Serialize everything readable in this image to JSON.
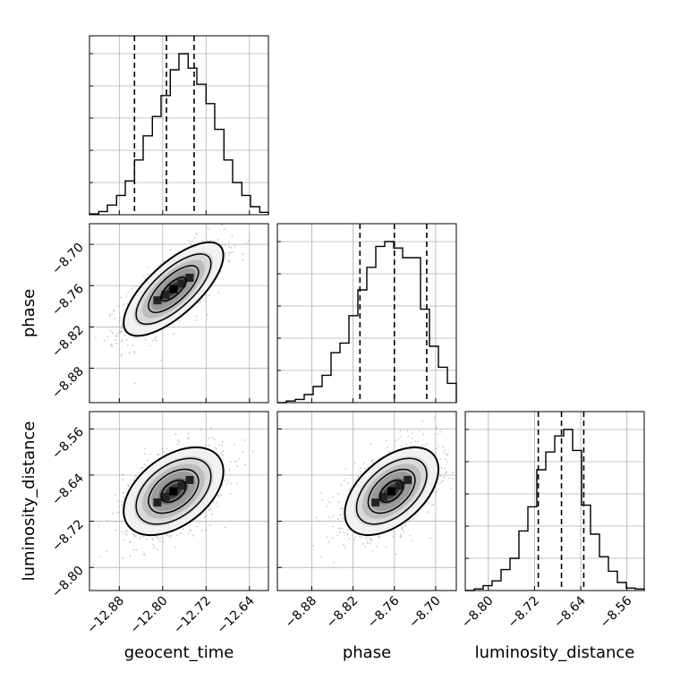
{
  "chart_data": {
    "type": "corner",
    "parameters": [
      "geocent_time",
      "phase",
      "luminosity_distance"
    ],
    "grid": true,
    "marginals": [
      {
        "parameter": "geocent_time",
        "xlim": [
          -12.935,
          -12.605
        ],
        "ticks": [
          -12.88,
          -12.8,
          -12.72,
          -12.64
        ],
        "tick_labels": [
          "−12.88",
          "−12.80",
          "−12.72",
          "−12.64"
        ],
        "quantiles": [
          -12.852,
          -12.793,
          -12.742
        ],
        "bins": [
          -12.935,
          -12.918,
          -12.902,
          -12.885,
          -12.869,
          -12.852,
          -12.836,
          -12.819,
          -12.803,
          -12.786,
          -12.77,
          -12.753,
          -12.737,
          -12.72,
          -12.704,
          -12.687,
          -12.671,
          -12.654,
          -12.638,
          -12.621,
          -12.605
        ],
        "density": [
          0.005,
          0.02,
          0.06,
          0.12,
          0.21,
          0.34,
          0.49,
          0.61,
          0.74,
          0.9,
          1.0,
          0.91,
          0.81,
          0.69,
          0.53,
          0.34,
          0.2,
          0.12,
          0.05,
          0.015
        ]
      },
      {
        "parameter": "phase",
        "xlim": [
          -8.93,
          -8.67
        ],
        "ticks": [
          -8.88,
          -8.82,
          -8.76,
          -8.7
        ],
        "tick_labels": [
          "−8.88",
          "−8.82",
          "−8.76",
          "−8.70"
        ],
        "quantiles": [
          -8.81,
          -8.76,
          -8.713
        ],
        "bins": [
          -8.93,
          -8.917,
          -8.904,
          -8.891,
          -8.878,
          -8.865,
          -8.852,
          -8.839,
          -8.826,
          -8.813,
          -8.8,
          -8.787,
          -8.774,
          -8.761,
          -8.748,
          -8.735,
          -8.722,
          -8.709,
          -8.696,
          -8.683,
          -8.67
        ],
        "density": [
          0.0,
          0.01,
          0.02,
          0.05,
          0.1,
          0.17,
          0.31,
          0.37,
          0.54,
          0.7,
          0.84,
          0.97,
          1.0,
          0.96,
          0.9,
          0.9,
          0.58,
          0.35,
          0.22,
          0.12
        ]
      },
      {
        "parameter": "luminosity_distance",
        "xlim": [
          -8.84,
          -8.53
        ],
        "ticks": [
          -8.8,
          -8.72,
          -8.64,
          -8.56
        ],
        "tick_labels": [
          "−8.80",
          "−8.72",
          "−8.64",
          "−8.56"
        ],
        "quantiles": [
          -8.7135,
          -8.6733,
          -8.6347
        ],
        "bins": [
          -8.84,
          -8.8245,
          -8.809,
          -8.7935,
          -8.778,
          -8.7625,
          -8.747,
          -8.7315,
          -8.716,
          -8.7005,
          -8.685,
          -8.6695,
          -8.654,
          -8.6385,
          -8.623,
          -8.6075,
          -8.592,
          -8.5765,
          -8.561,
          -8.5455,
          -8.53
        ],
        "density": [
          0.0,
          0.01,
          0.03,
          0.06,
          0.13,
          0.2,
          0.37,
          0.52,
          0.75,
          0.86,
          0.96,
          1.0,
          0.87,
          0.53,
          0.35,
          0.21,
          0.12,
          0.05,
          0.015,
          0.01
        ]
      }
    ],
    "pairs": [
      {
        "x": "geocent_time",
        "y": "phase",
        "ylim": [
          -8.93,
          -8.67
        ],
        "yticks": [
          -8.88,
          -8.82,
          -8.76,
          -8.7
        ],
        "ytick_labels": [
          "−8.88",
          "−8.82",
          "−8.76",
          "−8.70"
        ],
        "mean": [
          -12.78,
          -8.765
        ],
        "std": [
          0.046,
          0.034
        ],
        "corr": 0.72
      },
      {
        "x": "geocent_time",
        "y": "luminosity_distance",
        "ylim": [
          -8.84,
          -8.53
        ],
        "yticks": [
          -8.8,
          -8.72,
          -8.64,
          -8.56
        ],
        "ytick_labels": [
          "−8.80",
          "−8.72",
          "−8.64",
          "−8.56"
        ],
        "mean": [
          -12.78,
          -8.668
        ],
        "std": [
          0.046,
          0.038
        ],
        "corr": 0.45
      },
      {
        "x": "phase",
        "y": "luminosity_distance",
        "ylim": [
          -8.84,
          -8.53
        ],
        "yticks": [
          -8.8,
          -8.72,
          -8.64,
          -8.56
        ],
        "ytick_labels": [
          "−8.80",
          "−8.72",
          "−8.64",
          "−8.56"
        ],
        "mean": [
          -8.764,
          -8.668
        ],
        "std": [
          0.034,
          0.038
        ],
        "corr": 0.5
      }
    ],
    "contour_levels_sigma": [
      0.5,
      1.0,
      1.5,
      2.0
    ],
    "xlabels": [
      "geocent_time",
      "phase",
      "luminosity_distance"
    ],
    "ylabels": [
      "phase",
      "luminosity_distance"
    ],
    "colors": {
      "line": "#000000",
      "grid": "#b0b0b0",
      "points": "#9a9a9a"
    }
  }
}
